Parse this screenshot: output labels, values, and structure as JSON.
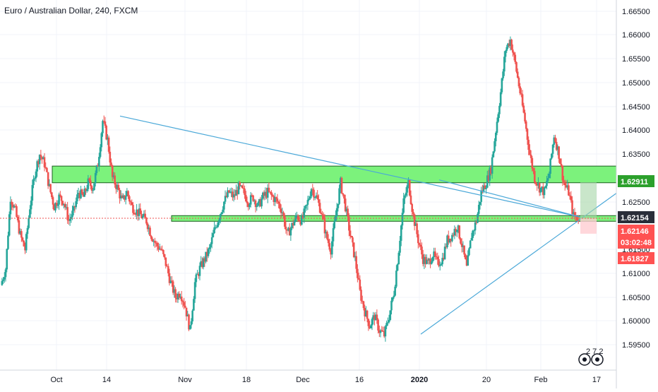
{
  "title": "Euro / Australian Dollar, 240, FXCM",
  "price_axis": {
    "labels": [
      "1.66500",
      "1.66000",
      "1.65500",
      "1.65000",
      "1.64500",
      "1.64000",
      "1.63500",
      "1.62500",
      "1.61500",
      "1.61000",
      "1.60500",
      "1.60000",
      "1.59500"
    ]
  },
  "time_axis": {
    "labels": [
      "Oct",
      "14",
      "Nov",
      "18",
      "Dec",
      "16",
      "2020",
      "20",
      "Feb",
      "17"
    ]
  },
  "tags": {
    "zone_top": "1.62911",
    "current": "1.62154",
    "stop": "1.62146",
    "countdown": "03:02:48",
    "target": "1.61827"
  },
  "colors": {
    "up": "#26a69a",
    "down": "#ef5350",
    "zone_fill": "#7cf27c",
    "trendline": "#4aa8d8",
    "grid": "#f0f3fa",
    "current_tag": "#2a2e39",
    "stop_tag": "#ff5252",
    "green_tag": "#2ca02c"
  },
  "logo": {
    "text": "2 7 2",
    "icon": "tradingview-logo-icon"
  },
  "chart_data": {
    "type": "candlestick",
    "title": "Euro / Australian Dollar, 240, FXCM",
    "ylim": [
      1.5925,
      1.6665
    ],
    "x_ticks": [
      "Oct",
      "14",
      "Nov",
      "18",
      "Dec",
      "16",
      "2020",
      "20",
      "Feb",
      "17"
    ],
    "y_ticks": [
      1.665,
      1.66,
      1.655,
      1.65,
      1.645,
      1.64,
      1.635,
      1.625,
      1.615,
      1.61,
      1.605,
      1.6,
      1.595
    ],
    "path_closes": [
      1.6075,
      1.611,
      1.626,
      1.623,
      1.618,
      1.615,
      1.624,
      1.631,
      1.635,
      1.633,
      1.628,
      1.624,
      1.626,
      1.625,
      1.621,
      1.623,
      1.627,
      1.626,
      1.629,
      1.628,
      1.633,
      1.642,
      1.638,
      1.63,
      1.628,
      1.625,
      1.627,
      1.624,
      1.623,
      1.622,
      1.621,
      1.618,
      1.616,
      1.615,
      1.612,
      1.608,
      1.605,
      1.606,
      1.603,
      1.598,
      1.608,
      1.611,
      1.613,
      1.615,
      1.619,
      1.622,
      1.625,
      1.627,
      1.626,
      1.628,
      1.627,
      1.625,
      1.626,
      1.624,
      1.626,
      1.627,
      1.626,
      1.625,
      1.623,
      1.618,
      1.62,
      1.622,
      1.621,
      1.624,
      1.628,
      1.626,
      1.623,
      1.618,
      1.615,
      1.622,
      1.629,
      1.624,
      1.618,
      1.613,
      1.606,
      1.602,
      1.599,
      1.601,
      1.598,
      1.597,
      1.601,
      1.606,
      1.615,
      1.625,
      1.629,
      1.622,
      1.617,
      1.613,
      1.612,
      1.614,
      1.612,
      1.613,
      1.617,
      1.618,
      1.62,
      1.616,
      1.611,
      1.618,
      1.621,
      1.627,
      1.629,
      1.632,
      1.64,
      1.648,
      1.657,
      1.659,
      1.654,
      1.648,
      1.642,
      1.635,
      1.63,
      1.628,
      1.627,
      1.631,
      1.639,
      1.635,
      1.629,
      1.627,
      1.622,
      1.6215
    ],
    "zones": [
      {
        "low": 1.629,
        "high": 1.6325
      },
      {
        "low": 1.621,
        "high": 1.6218
      }
    ],
    "trendlines": [
      {
        "from": [
          "Oct 16",
          1.643
        ],
        "to": [
          "Feb 11",
          1.6215
        ]
      },
      {
        "from": [
          "Jan 1",
          1.5975
        ],
        "to": [
          "Feb 17",
          1.6265
        ]
      },
      {
        "from": [
          "Jan 4",
          1.6295
        ],
        "to": [
          "Feb 11",
          1.6215
        ]
      }
    ],
    "position": {
      "entry": 1.6215,
      "target_high": 1.6291,
      "stop_low": 1.6183
    },
    "current_price": 1.62154,
    "colors": {
      "up": "#26a69a",
      "down": "#ef5350"
    }
  }
}
